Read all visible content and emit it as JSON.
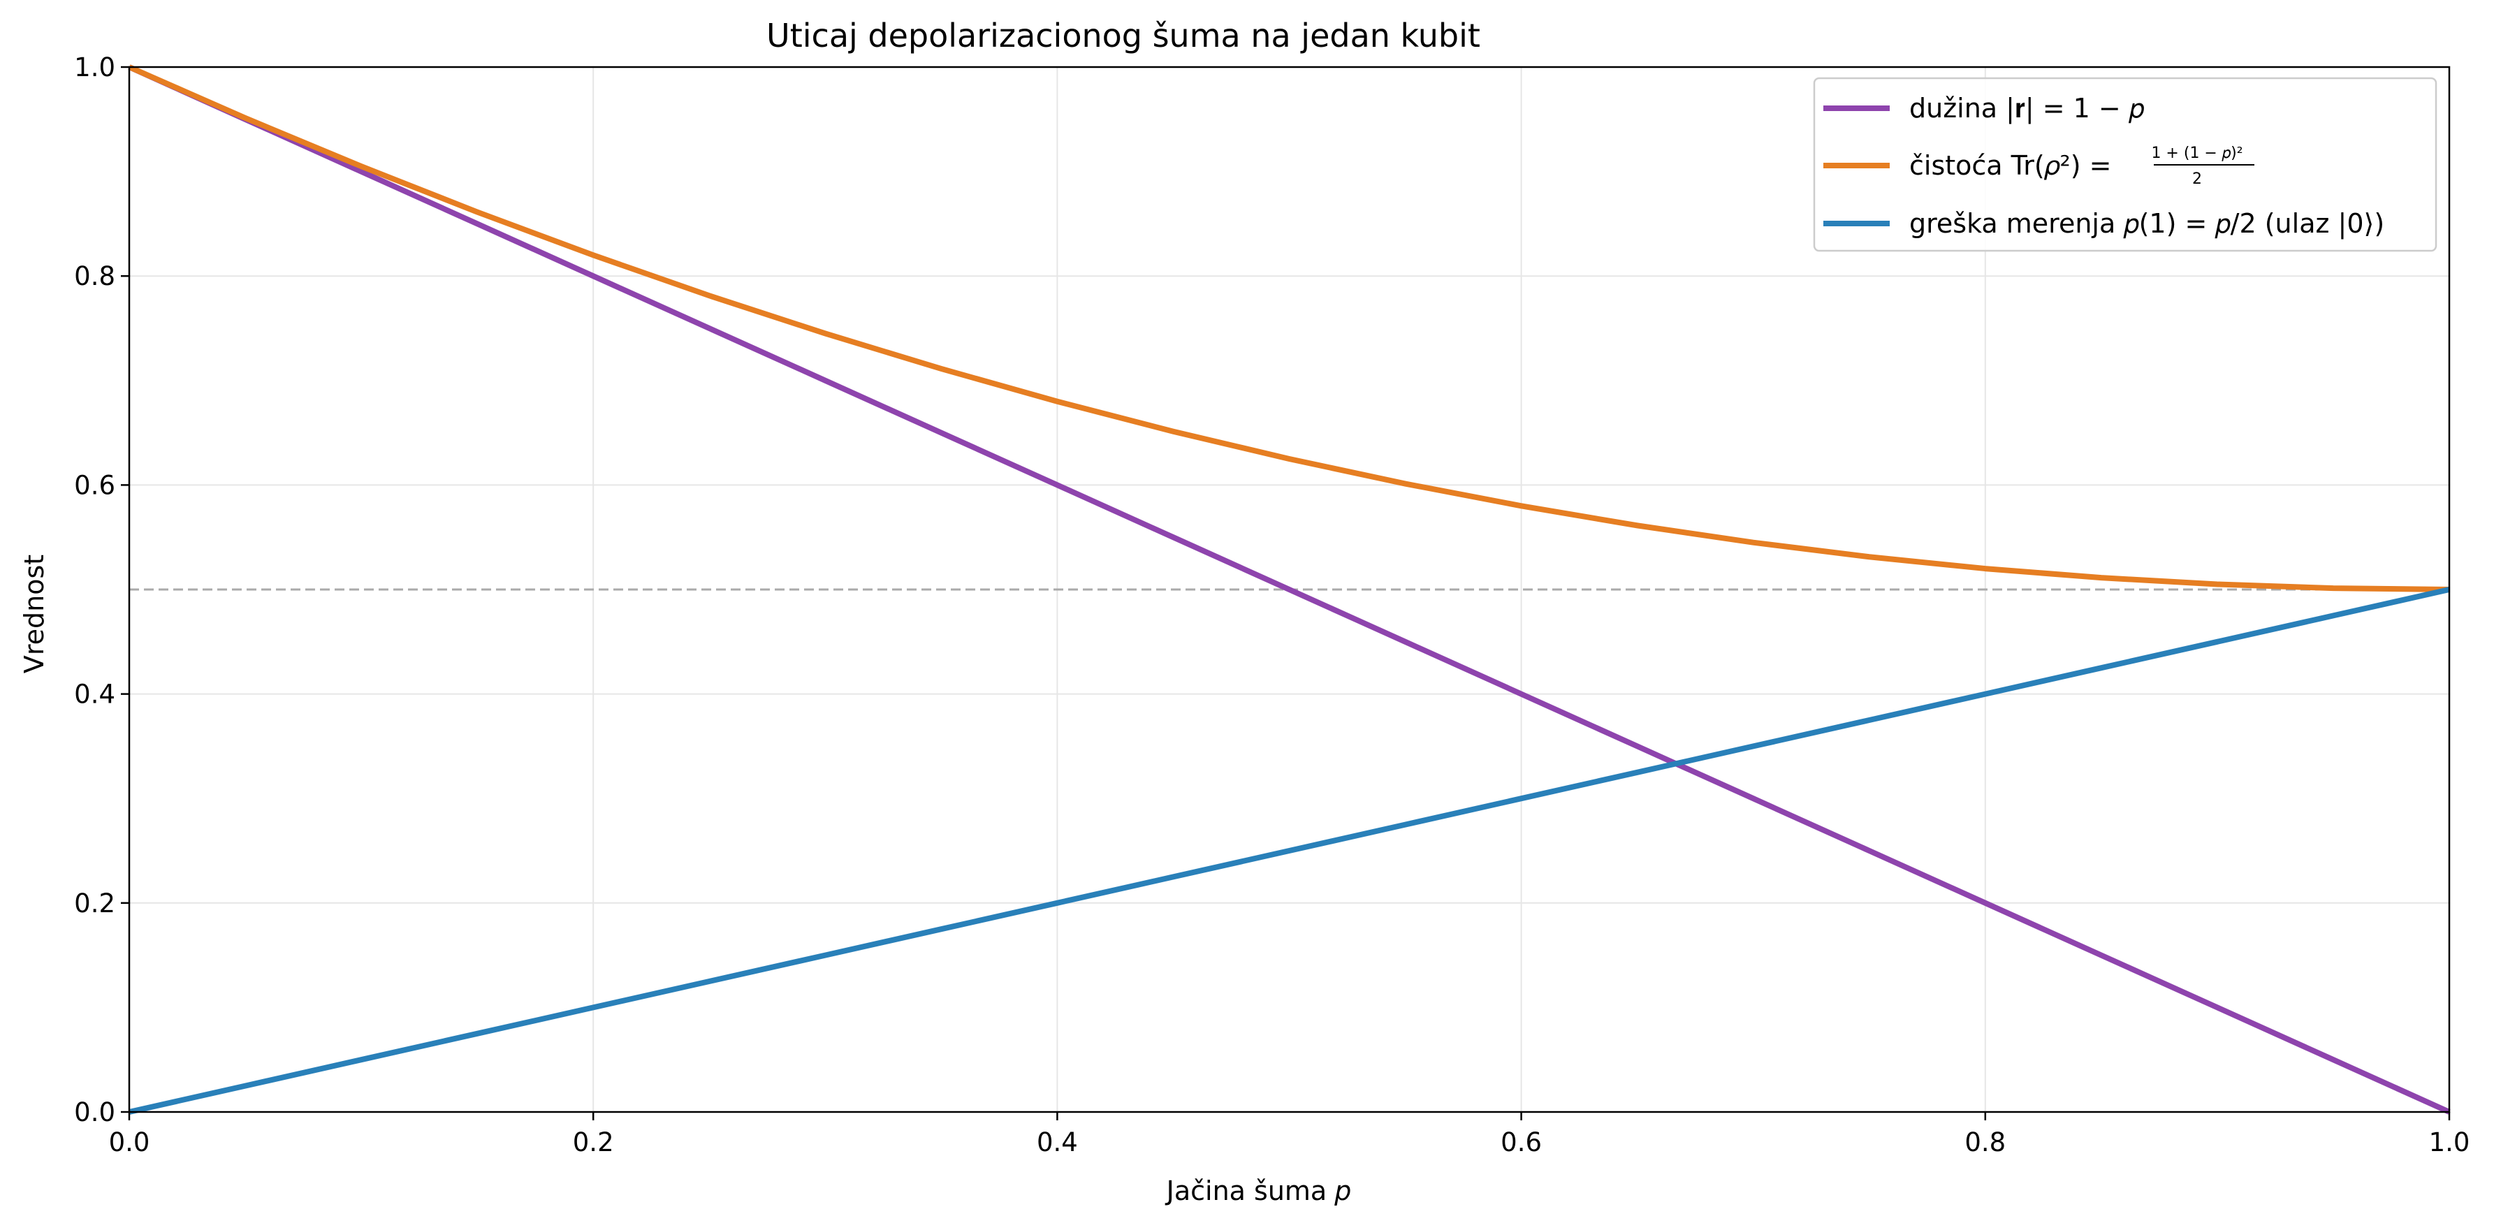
{
  "chart_data": {
    "type": "line",
    "title": "Uticaj depolarizacionog šuma na jedan kubit",
    "xlabel": "Jačina šuma",
    "xlabel_var": "p",
    "ylabel": "Vrednost",
    "xlim": [
      0.0,
      1.0
    ],
    "ylim": [
      0.0,
      1.0
    ],
    "xticks": [
      0.0,
      0.2,
      0.4,
      0.6,
      0.8,
      1.0
    ],
    "xtick_labels": [
      "0.0",
      "0.2",
      "0.4",
      "0.6",
      "0.8",
      "1.0"
    ],
    "yticks": [
      0.0,
      0.2,
      0.4,
      0.6,
      0.8,
      1.0
    ],
    "ytick_labels": [
      "0.0",
      "0.2",
      "0.4",
      "0.6",
      "0.8",
      "1.0"
    ],
    "grid": true,
    "legend_position": "top-right",
    "x": [
      0.0,
      0.05,
      0.1,
      0.15,
      0.2,
      0.25,
      0.3,
      0.35,
      0.4,
      0.45,
      0.5,
      0.55,
      0.6,
      0.65,
      0.7,
      0.75,
      0.8,
      0.85,
      0.9,
      0.95,
      1.0
    ],
    "series": [
      {
        "name": "dužina |r| = 1 − p",
        "label_parts": {
          "text": "dužina ",
          "formula": "|𝐫| = 1 − 𝑝"
        },
        "color": "#8e44ad",
        "values": [
          1.0,
          0.95,
          0.9,
          0.85,
          0.8,
          0.75,
          0.7,
          0.65,
          0.6,
          0.55,
          0.5,
          0.45,
          0.4,
          0.35,
          0.3,
          0.25,
          0.2,
          0.15,
          0.1,
          0.05,
          0.0
        ]
      },
      {
        "name": "čistoća Tr(ρ²) = (1 + (1 − p)²)/2",
        "label_parts": {
          "text": "čistoća ",
          "formula": "Tr(𝜌²) = ",
          "numerator": "1 + (1 − 𝑝)²",
          "denominator": "2"
        },
        "color": "#e67e22",
        "values": [
          1.0,
          0.95125,
          0.905,
          0.86125,
          0.82,
          0.78125,
          0.745,
          0.71125,
          0.68,
          0.65125,
          0.625,
          0.60125,
          0.58,
          0.56125,
          0.545,
          0.53125,
          0.52,
          0.51125,
          0.505,
          0.50125,
          0.5
        ]
      },
      {
        "name": "greška merenja p(1) = p/2 (ulaz |0⟩)",
        "label_parts": {
          "text": "greška merenja ",
          "formula": "𝑝(1) = 𝑝/2",
          "suffix": " (ulaz |0⟩)"
        },
        "color": "#2980b9",
        "values": [
          0.0,
          0.025,
          0.05,
          0.075,
          0.1,
          0.125,
          0.15,
          0.175,
          0.2,
          0.225,
          0.25,
          0.275,
          0.3,
          0.325,
          0.35,
          0.375,
          0.4,
          0.425,
          0.45,
          0.475,
          0.5
        ]
      }
    ],
    "reference_lines": [
      {
        "orientation": "horizontal",
        "y": 0.5,
        "style": "dashed",
        "color": "#aaaaaa"
      }
    ]
  }
}
